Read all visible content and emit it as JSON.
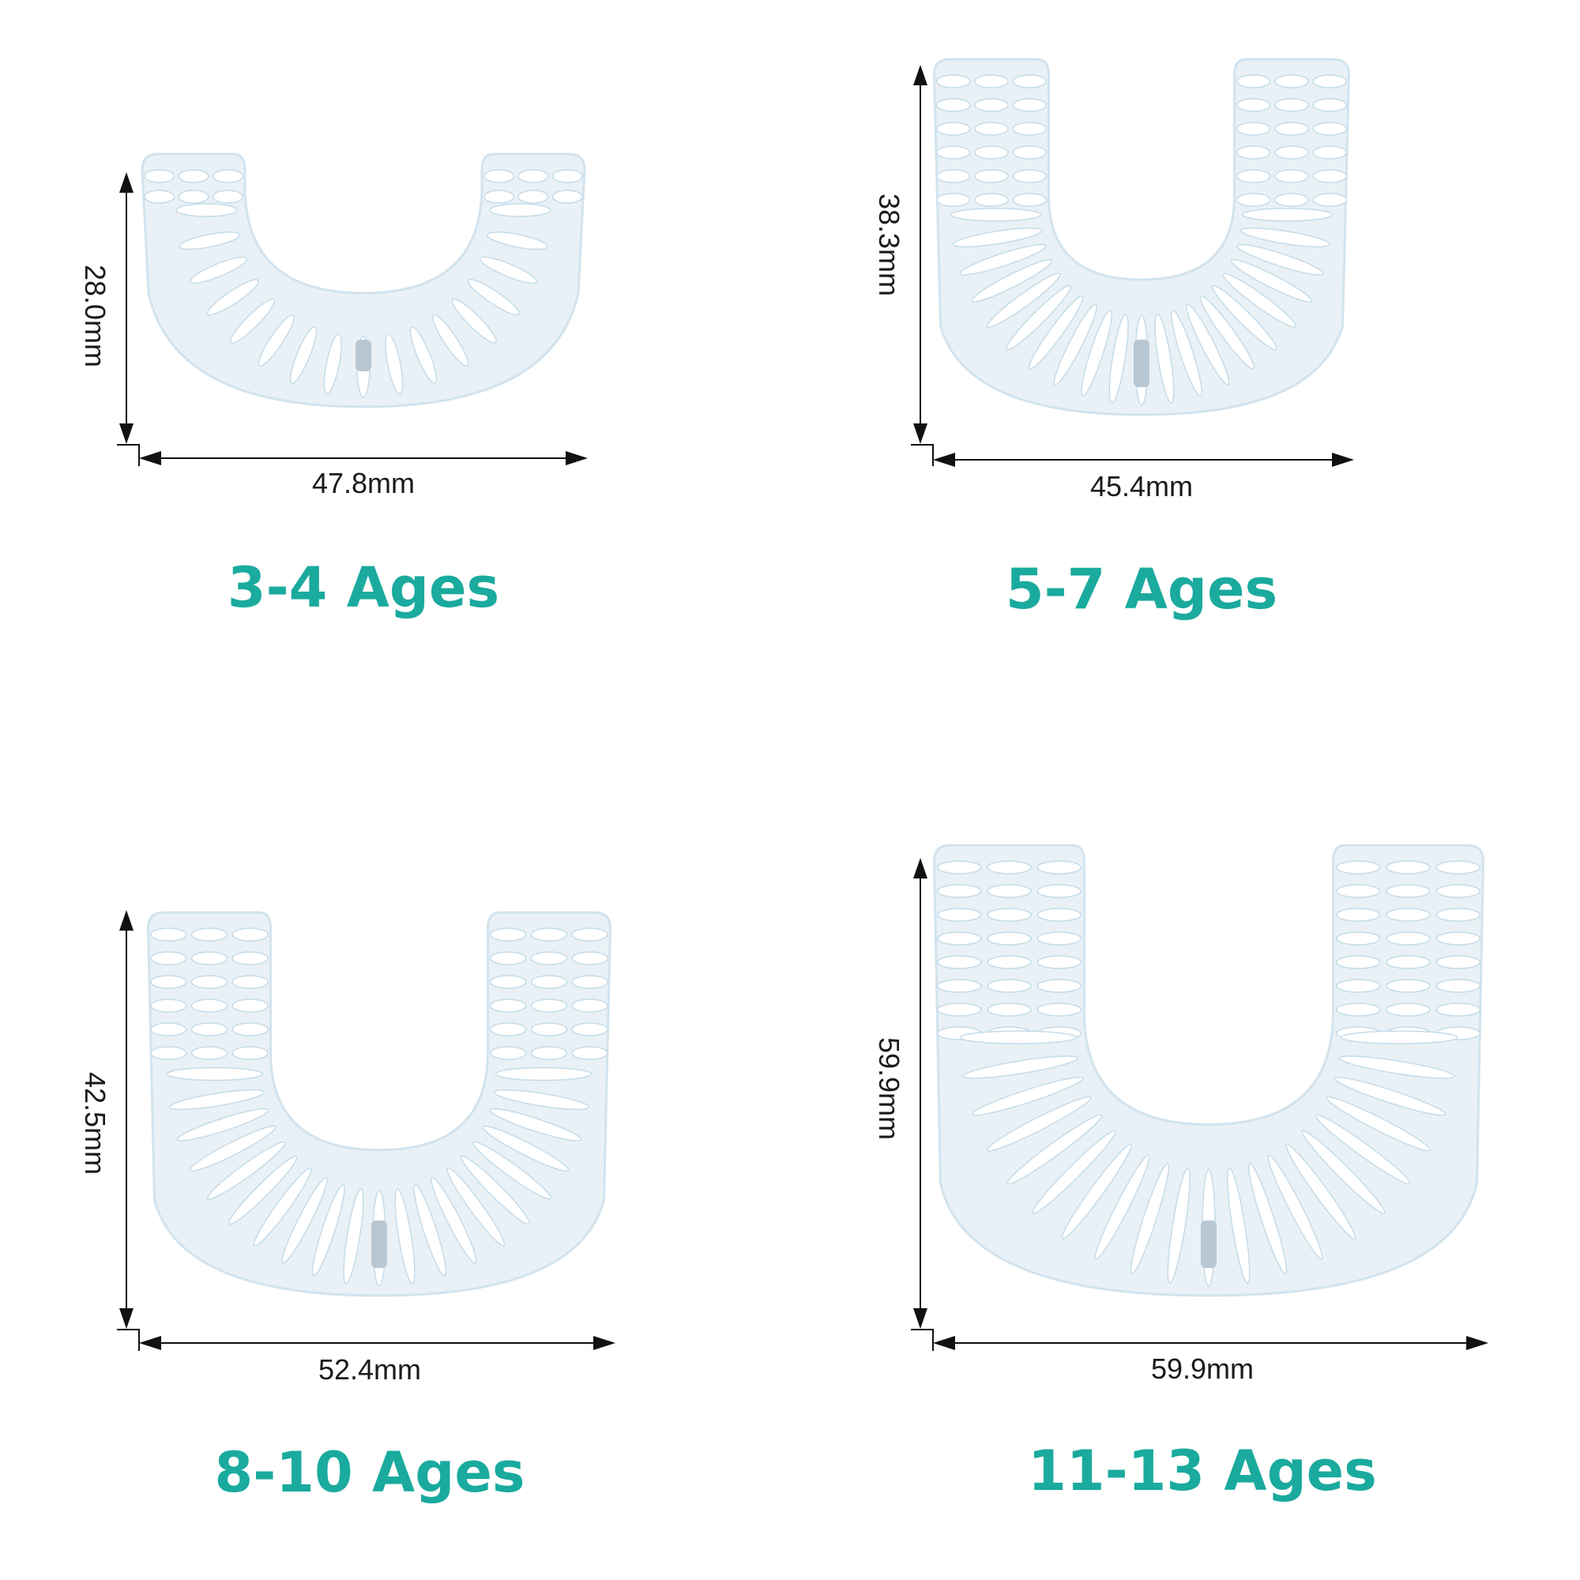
{
  "colors": {
    "accent": "#1aaa9e",
    "brush_body": "#e9f1f6",
    "dim_line": "#111111"
  },
  "items": [
    {
      "age_label": "3-4 Ages",
      "width": "47.8mm",
      "height": "28.0mm"
    },
    {
      "age_label": "5-7 Ages",
      "width": "45.4mm",
      "height": "38.3mm"
    },
    {
      "age_label": "8-10 Ages",
      "width": "52.4mm",
      "height": "42.5mm"
    },
    {
      "age_label": "11-13 Ages",
      "width": "59.9mm",
      "height": "59.9mm"
    }
  ]
}
